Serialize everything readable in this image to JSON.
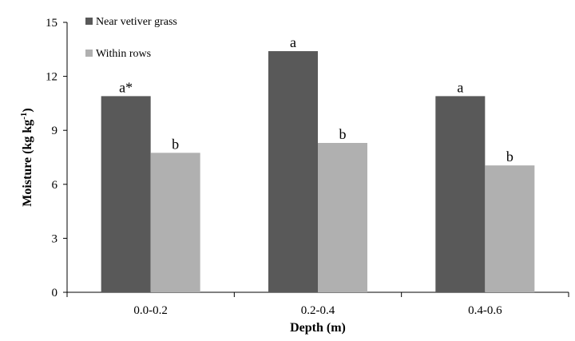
{
  "chart_data": {
    "type": "bar",
    "title": "",
    "xlabel": "Depth (m)",
    "ylabel": {
      "main": "Moisture (kg kg",
      "superscript": "-1",
      "close": ")"
    },
    "ylim": [
      0,
      15
    ],
    "yticks": [
      0,
      3,
      6,
      9,
      12,
      15
    ],
    "categories": [
      "0.0-0.2",
      "0.2-0.4",
      "0.4-0.6"
    ],
    "series": [
      {
        "name": "Near vetiver grass",
        "color": "#595959",
        "values": [
          10.9,
          13.4,
          10.9
        ],
        "labels": [
          "a*",
          "a",
          "a"
        ]
      },
      {
        "name": "Within rows",
        "color": "#b0b0b0",
        "values": [
          7.75,
          8.3,
          7.05
        ],
        "labels": [
          "b",
          "b",
          "b"
        ]
      }
    ],
    "legend_position": "top-left",
    "grid": false
  }
}
